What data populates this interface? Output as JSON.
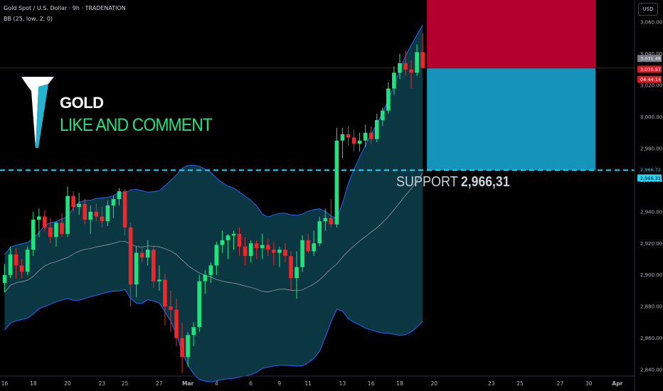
{
  "header": {
    "symbol_line": "Gold Spot / U.S. Dollar · 9h · TRADENATION",
    "indicator_line": "BB (25, low, 2, 0)",
    "currency_button": "USD"
  },
  "annotations": {
    "brand_title": "GOLD",
    "brand_cta": "LIKE AND COMMENT",
    "support_label": "SUPPORT",
    "support_value": "2,966,31"
  },
  "colors": {
    "background": "#000000",
    "up": "#22e27e",
    "down": "#f0262a",
    "band_fill": "#0b3a44",
    "band_line": "#2962ff",
    "basis_line": "#b2b5be",
    "support_line": "#2ad3f5",
    "stop_zone": "#b3002d",
    "target_zone": "#1593b8",
    "axis_text": "#b2b5be"
  },
  "chart_data": {
    "type": "candlestick",
    "y_axis": {
      "min": 2836,
      "max": 3074,
      "ticks": [
        2840,
        2860,
        2880,
        2900,
        2920,
        2940,
        2960,
        2980,
        3000,
        3020,
        3040,
        3060
      ],
      "tick_labels": [
        "2,840.00",
        "2,860.00",
        "2,880.00",
        "2,900.00",
        "2,920.00",
        "2,940.00",
        "2,960.00",
        "2,980.00",
        "3,000.00",
        "3,020.00",
        "3,040.00",
        "3,060.00"
      ]
    },
    "x_axis": {
      "tick_labels": [
        "16",
        "18",
        "20",
        "23",
        "25",
        "27",
        "Mar",
        "4",
        "6",
        "9",
        "11",
        "13",
        "16",
        "18",
        "20",
        "23",
        "25",
        "27",
        "30",
        "Apr"
      ],
      "tick_bars": [
        0,
        5,
        11,
        17,
        21,
        27,
        32,
        37,
        43,
        48,
        53,
        59,
        64,
        69,
        75,
        85,
        90,
        97,
        102,
        107
      ]
    },
    "price_labels": {
      "last_price": "3,031.48",
      "entry": "3,030.97",
      "countdown": "04:44:14",
      "support_a": "2,966.72",
      "support_b": "2,966.31"
    },
    "levels": {
      "entry": 3030.97,
      "support": 2966.31,
      "stop_top": 3074
    },
    "candles": [
      [
        2895,
        2907,
        2889,
        2900
      ],
      [
        2900,
        2918,
        2898,
        2913
      ],
      [
        2913,
        2917,
        2898,
        2906
      ],
      [
        2906,
        2910,
        2898,
        2902
      ],
      [
        2902,
        2918,
        2900,
        2916
      ],
      [
        2916,
        2940,
        2912,
        2935
      ],
      [
        2935,
        2942,
        2924,
        2937
      ],
      [
        2937,
        2941,
        2927,
        2930
      ],
      [
        2930,
        2936,
        2920,
        2924
      ],
      [
        2924,
        2934,
        2918,
        2933
      ],
      [
        2933,
        2939,
        2924,
        2926
      ],
      [
        2926,
        2956,
        2924,
        2950
      ],
      [
        2950,
        2953,
        2940,
        2943
      ],
      [
        2943,
        2952,
        2938,
        2945
      ],
      [
        2945,
        2948,
        2932,
        2935
      ],
      [
        2935,
        2944,
        2926,
        2940
      ],
      [
        2940,
        2945,
        2934,
        2937
      ],
      [
        2937,
        2943,
        2930,
        2934
      ],
      [
        2934,
        2947,
        2931,
        2944
      ],
      [
        2944,
        2950,
        2936,
        2948
      ],
      [
        2948,
        2955,
        2944,
        2953
      ],
      [
        2953,
        2954,
        2925,
        2930
      ],
      [
        2930,
        2933,
        2880,
        2894
      ],
      [
        2894,
        2918,
        2886,
        2914
      ],
      [
        2914,
        2917,
        2908,
        2911
      ],
      [
        2911,
        2922,
        2906,
        2916
      ],
      [
        2916,
        2918,
        2892,
        2896
      ],
      [
        2896,
        2906,
        2890,
        2897
      ],
      [
        2897,
        2901,
        2868,
        2880
      ],
      [
        2880,
        2890,
        2864,
        2878
      ],
      [
        2878,
        2885,
        2855,
        2860
      ],
      [
        2860,
        2870,
        2838,
        2848
      ],
      [
        2848,
        2864,
        2842,
        2862
      ],
      [
        2862,
        2870,
        2855,
        2867
      ],
      [
        2867,
        2900,
        2864,
        2896
      ],
      [
        2896,
        2903,
        2888,
        2900
      ],
      [
        2900,
        2908,
        2895,
        2906
      ],
      [
        2906,
        2921,
        2900,
        2919
      ],
      [
        2919,
        2928,
        2914,
        2922
      ],
      [
        2922,
        2926,
        2910,
        2925
      ],
      [
        2925,
        2928,
        2916,
        2926
      ],
      [
        2926,
        2930,
        2912,
        2918
      ],
      [
        2918,
        2924,
        2906,
        2912
      ],
      [
        2912,
        2922,
        2908,
        2920
      ],
      [
        2920,
        2922,
        2910,
        2917
      ],
      [
        2917,
        2926,
        2910,
        2919
      ],
      [
        2919,
        2923,
        2912,
        2916
      ],
      [
        2916,
        2921,
        2906,
        2914
      ],
      [
        2914,
        2918,
        2905,
        2916
      ],
      [
        2916,
        2920,
        2908,
        2912
      ],
      [
        2912,
        2915,
        2890,
        2898
      ],
      [
        2898,
        2915,
        2885,
        2905
      ],
      [
        2905,
        2925,
        2902,
        2922
      ],
      [
        2922,
        2926,
        2914,
        2915
      ],
      [
        2915,
        2928,
        2912,
        2920
      ],
      [
        2920,
        2937,
        2918,
        2934
      ],
      [
        2934,
        2942,
        2928,
        2936
      ],
      [
        2936,
        2948,
        2930,
        2932
      ],
      [
        2932,
        2993,
        2930,
        2985
      ],
      [
        2985,
        2993,
        2974,
        2989
      ],
      [
        2989,
        2994,
        2982,
        2987
      ],
      [
        2987,
        2992,
        2978,
        2983
      ],
      [
        2983,
        2990,
        2978,
        2985
      ],
      [
        2985,
        2995,
        2981,
        2990
      ],
      [
        2990,
        2994,
        2983,
        2986
      ],
      [
        2986,
        3002,
        2984,
        2998
      ],
      [
        2998,
        3006,
        2994,
        3004
      ],
      [
        3004,
        3022,
        3002,
        3018
      ],
      [
        3018,
        3032,
        3014,
        3028
      ],
      [
        3028,
        3040,
        3024,
        3034
      ],
      [
        3034,
        3042,
        3026,
        3030
      ],
      [
        3030,
        3036,
        3018,
        3028
      ],
      [
        3028,
        3046,
        3026,
        3041
      ],
      [
        3041,
        3053,
        3031,
        3031
      ]
    ]
  }
}
